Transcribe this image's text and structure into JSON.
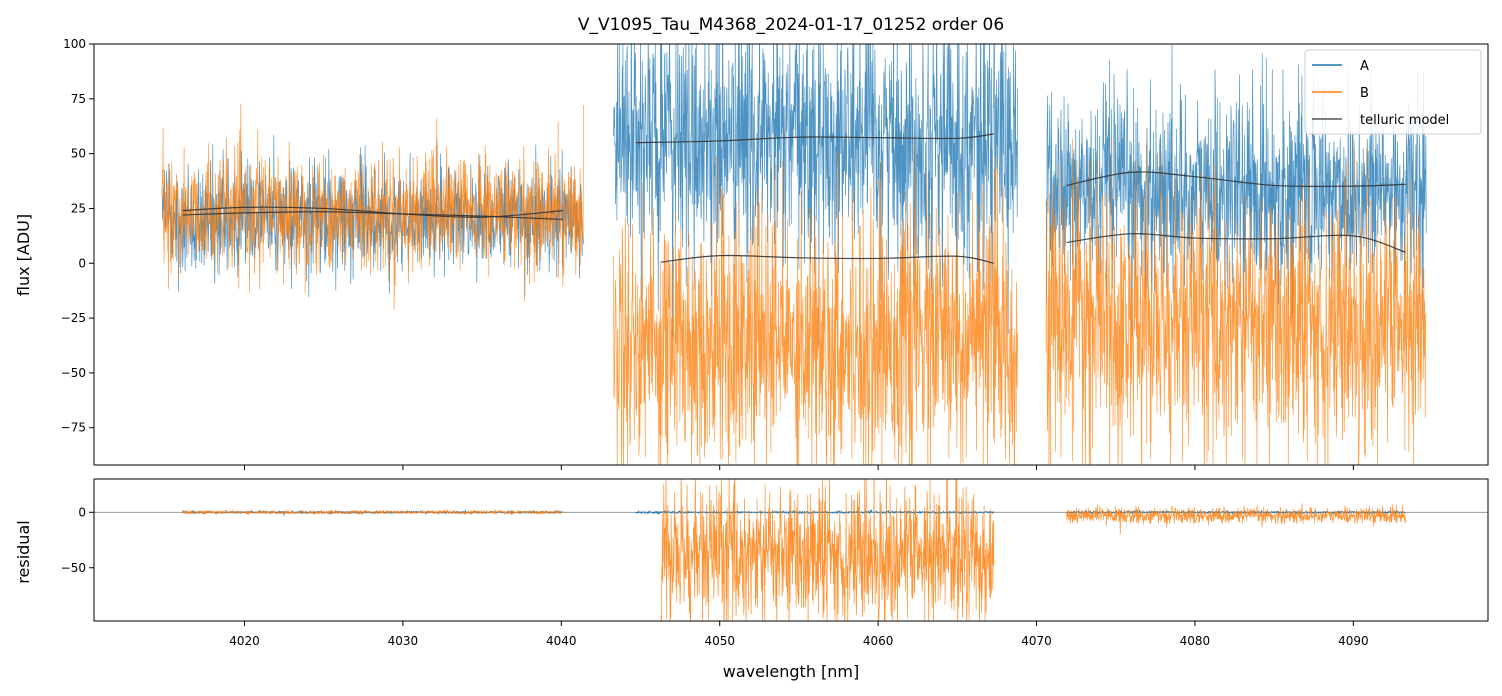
{
  "chart_data": {
    "type": "line",
    "title": "V_V1095_Tau_M4368_2024-01-17_01252  order 06",
    "xlabel": "wavelength [nm]",
    "xlim": [
      4010.5,
      4098.5
    ],
    "x_ticks": [
      4020,
      4030,
      4040,
      4050,
      4060,
      4070,
      4080,
      4090
    ],
    "colors": {
      "A": "#1f77b4",
      "B": "#ff7f0e",
      "model": "#333333",
      "zero_line": "#888888"
    },
    "panels": {
      "top": {
        "ylabel": "flux [ADU]",
        "ylim": [
          -92,
          100
        ],
        "y_ticks": [
          -75,
          -50,
          -25,
          0,
          25,
          50,
          75,
          100
        ],
        "legend": {
          "position": "top-right",
          "entries": [
            "A",
            "B",
            "telluric model"
          ]
        },
        "series": [
          {
            "name": "A",
            "segments": [
              {
                "x_range": [
                  4014.8,
                  4041.4
                ],
                "mean": 21,
                "noise": 12
              },
              {
                "x_range": [
                  4043.3,
                  4068.8
                ],
                "mean": 56,
                "noise": 28
              },
              {
                "x_range": [
                  4070.6,
                  4094.6
                ],
                "mean": 33,
                "noise": 22
              }
            ]
          },
          {
            "name": "B",
            "segments": [
              {
                "x_range": [
                  4014.8,
                  4041.4
                ],
                "mean": 23,
                "noise": 13
              },
              {
                "x_range": [
                  4043.3,
                  4068.8
                ],
                "mean": -35,
                "noise": 30
              },
              {
                "x_range": [
                  4070.6,
                  4094.6
                ],
                "mean": -28,
                "noise": 30
              }
            ]
          },
          {
            "name": "telluric model",
            "curves": [
              {
                "x": [
                  4016.1,
                  4020,
                  4025,
                  4030,
                  4035,
                  4040.1
                ],
                "y": [
                  22,
                  23,
                  23.5,
                  22.5,
                  21.5,
                  20
                ]
              },
              {
                "x": [
                  4016.1,
                  4020,
                  4025,
                  4030,
                  4035,
                  4040.1
                ],
                "y": [
                  24,
                  25.5,
                  25,
                  22.5,
                  21,
                  24
                ]
              },
              {
                "x": [
                  4044.7,
                  4050,
                  4055,
                  4060,
                  4065,
                  4067.3
                ],
                "y": [
                  55,
                  55.8,
                  57.5,
                  57.3,
                  57,
                  59
                ]
              },
              {
                "x": [
                  4046.3,
                  4050,
                  4055,
                  4060,
                  4065,
                  4067.3
                ],
                "y": [
                  0.5,
                  3.5,
                  2.5,
                  2.2,
                  3.2,
                  0
                ]
              },
              {
                "x": [
                  4071.9,
                  4076,
                  4080,
                  4085,
                  4090,
                  4093.3
                ],
                "y": [
                  35.5,
                  41.5,
                  39.5,
                  35.5,
                  35.2,
                  36
                ]
              },
              {
                "x": [
                  4071.9,
                  4076,
                  4080,
                  4085,
                  4090,
                  4093.3
                ],
                "y": [
                  9.5,
                  13.5,
                  11.5,
                  11.2,
                  12.5,
                  5
                ]
              }
            ]
          }
        ]
      },
      "bottom": {
        "ylabel": "residual",
        "ylim": [
          -98,
          30
        ],
        "y_ticks": [
          -50,
          0
        ],
        "series": [
          {
            "name": "A",
            "segments": [
              {
                "x_range": [
                  4016.1,
                  4040.1
                ],
                "mean": 0,
                "noise": 0.6
              },
              {
                "x_range": [
                  4044.7,
                  4067.3
                ],
                "mean": 0,
                "noise": 0.6
              },
              {
                "x_range": [
                  4071.9,
                  4093.3
                ],
                "mean": 0,
                "noise": 0.6
              }
            ]
          },
          {
            "name": "B",
            "segments": [
              {
                "x_range": [
                  4016.1,
                  4040.1
                ],
                "mean": 0,
                "noise": 0.8
              },
              {
                "x_range": [
                  4046.3,
                  4067.3
                ],
                "mean": -38,
                "noise": 32
              },
              {
                "x_range": [
                  4071.9,
                  4093.3
                ],
                "mean": -3,
                "noise": 3.5
              }
            ]
          }
        ]
      }
    }
  }
}
